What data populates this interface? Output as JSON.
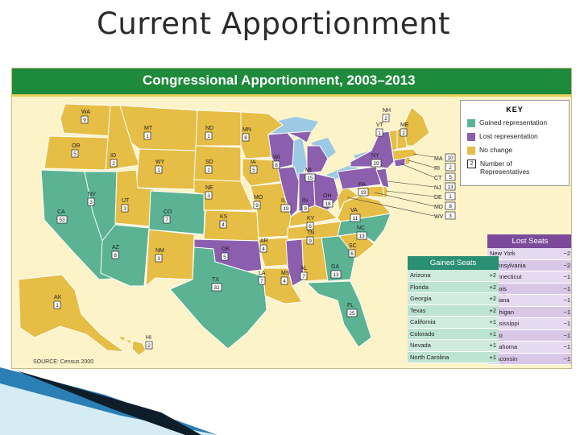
{
  "slide_title": "Current Apportionment",
  "map": {
    "title": "Congressional Apportionment, 2003–2013",
    "source": "SOURCE: Census 2000",
    "colors": {
      "gained": "#5bb394",
      "lost": "#8b5fae",
      "no_change": "#e6bd45",
      "water": "#9cc9e4",
      "ocean_bg": "#fdf3c8"
    },
    "key": {
      "title": "KEY",
      "gained": "Gained representation",
      "lost": "Lost representation",
      "no_change": "No change",
      "number_box": "2",
      "number_label_1": "Number of",
      "number_label_2": "Representatives"
    },
    "states": [
      {
        "abbr": "WA",
        "num": "9"
      },
      {
        "abbr": "OR",
        "num": "5"
      },
      {
        "abbr": "ID",
        "num": "2"
      },
      {
        "abbr": "MT",
        "num": "1"
      },
      {
        "abbr": "WY",
        "num": "1"
      },
      {
        "abbr": "ND",
        "num": "1"
      },
      {
        "abbr": "SD",
        "num": "1"
      },
      {
        "abbr": "NE",
        "num": "3"
      },
      {
        "abbr": "MN",
        "num": "8"
      },
      {
        "abbr": "IA",
        "num": "5"
      },
      {
        "abbr": "NV",
        "num": "3"
      },
      {
        "abbr": "UT",
        "num": "3"
      },
      {
        "abbr": "CO",
        "num": "7"
      },
      {
        "abbr": "KS",
        "num": "4"
      },
      {
        "abbr": "CA",
        "num": "53"
      },
      {
        "abbr": "AZ",
        "num": "8"
      },
      {
        "abbr": "NM",
        "num": "3"
      },
      {
        "abbr": "OK",
        "num": "5"
      },
      {
        "abbr": "TX",
        "num": "32"
      },
      {
        "abbr": "MO",
        "num": "9"
      },
      {
        "abbr": "AR",
        "num": "4"
      },
      {
        "abbr": "LA",
        "num": "7"
      },
      {
        "abbr": "WI",
        "num": "8"
      },
      {
        "abbr": "IL",
        "num": "19"
      },
      {
        "abbr": "MI",
        "num": "15"
      },
      {
        "abbr": "IN",
        "num": "9"
      },
      {
        "abbr": "OH",
        "num": "18"
      },
      {
        "abbr": "KY",
        "num": "6"
      },
      {
        "abbr": "TN",
        "num": "9"
      },
      {
        "abbr": "MS",
        "num": "4"
      },
      {
        "abbr": "AL",
        "num": "7"
      },
      {
        "abbr": "GA",
        "num": "13"
      },
      {
        "abbr": "FL",
        "num": "25"
      },
      {
        "abbr": "SC",
        "num": "6"
      },
      {
        "abbr": "NC",
        "num": "13"
      },
      {
        "abbr": "VA",
        "num": "11"
      },
      {
        "abbr": "PA",
        "num": "19"
      },
      {
        "abbr": "NY",
        "num": "29"
      },
      {
        "abbr": "VT",
        "num": "1"
      },
      {
        "abbr": "NH",
        "num": "2"
      },
      {
        "abbr": "ME",
        "num": "2"
      },
      {
        "abbr": "AK",
        "num": "1"
      },
      {
        "abbr": "HI",
        "num": "2"
      }
    ],
    "east_list": [
      {
        "abbr": "MA",
        "num": "10"
      },
      {
        "abbr": "RI",
        "num": "2"
      },
      {
        "abbr": "CT",
        "num": "5"
      },
      {
        "abbr": "NJ",
        "num": "13"
      },
      {
        "abbr": "DE",
        "num": "1"
      },
      {
        "abbr": "MD",
        "num": "8"
      },
      {
        "abbr": "WV",
        "num": "3"
      }
    ],
    "gained_seats": {
      "title": "Gained Seats",
      "rows": [
        {
          "state": "Arizona",
          "change": "+2"
        },
        {
          "state": "Florida",
          "change": "+2"
        },
        {
          "state": "Georgia",
          "change": "+2"
        },
        {
          "state": "Texas",
          "change": "+2"
        },
        {
          "state": "California",
          "change": "+1"
        },
        {
          "state": "Colorado",
          "change": "+1"
        },
        {
          "state": "Nevada",
          "change": "+1"
        },
        {
          "state": "North Carolina",
          "change": "+1"
        }
      ]
    },
    "lost_seats": {
      "title": "Lost Seats",
      "rows": [
        {
          "state": "New York",
          "change": "−2"
        },
        {
          "state": "Pennsylvania",
          "change": "−2"
        },
        {
          "state": "Connecticut",
          "change": "−1"
        },
        {
          "state": "Illinois",
          "change": "−1"
        },
        {
          "state": "Indiana",
          "change": "−1"
        },
        {
          "state": "Michigan",
          "change": "−1"
        },
        {
          "state": "Mississippi",
          "change": "−1"
        },
        {
          "state": "Ohio",
          "change": "−1"
        },
        {
          "state": "Oklahoma",
          "change": "−1"
        },
        {
          "state": "Wisconsin",
          "change": "−1"
        }
      ]
    }
  }
}
